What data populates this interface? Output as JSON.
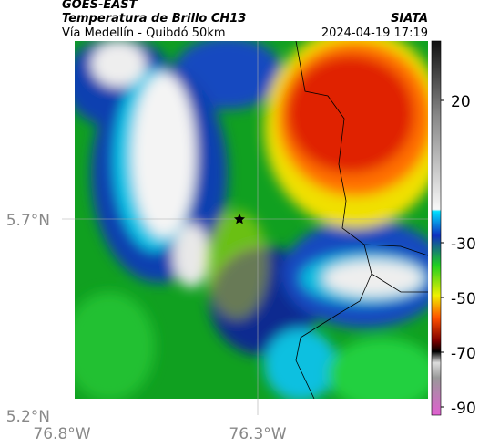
{
  "header": {
    "source": "GOES-EAST",
    "title": "Temperatura de Brillo CH13",
    "subtitle": "Vía Medellín - Quibdó 50km",
    "agency": "SIATA",
    "timestamp": "2024-04-19 17:19"
  },
  "axes": {
    "lat_labels": [
      "5.7°N",
      "5.2°N"
    ],
    "lon_labels": [
      "76.8°W",
      "76.3°W"
    ]
  },
  "colorbar": {
    "ticks": [
      20,
      -30,
      -50,
      -70,
      -90
    ]
  }
}
